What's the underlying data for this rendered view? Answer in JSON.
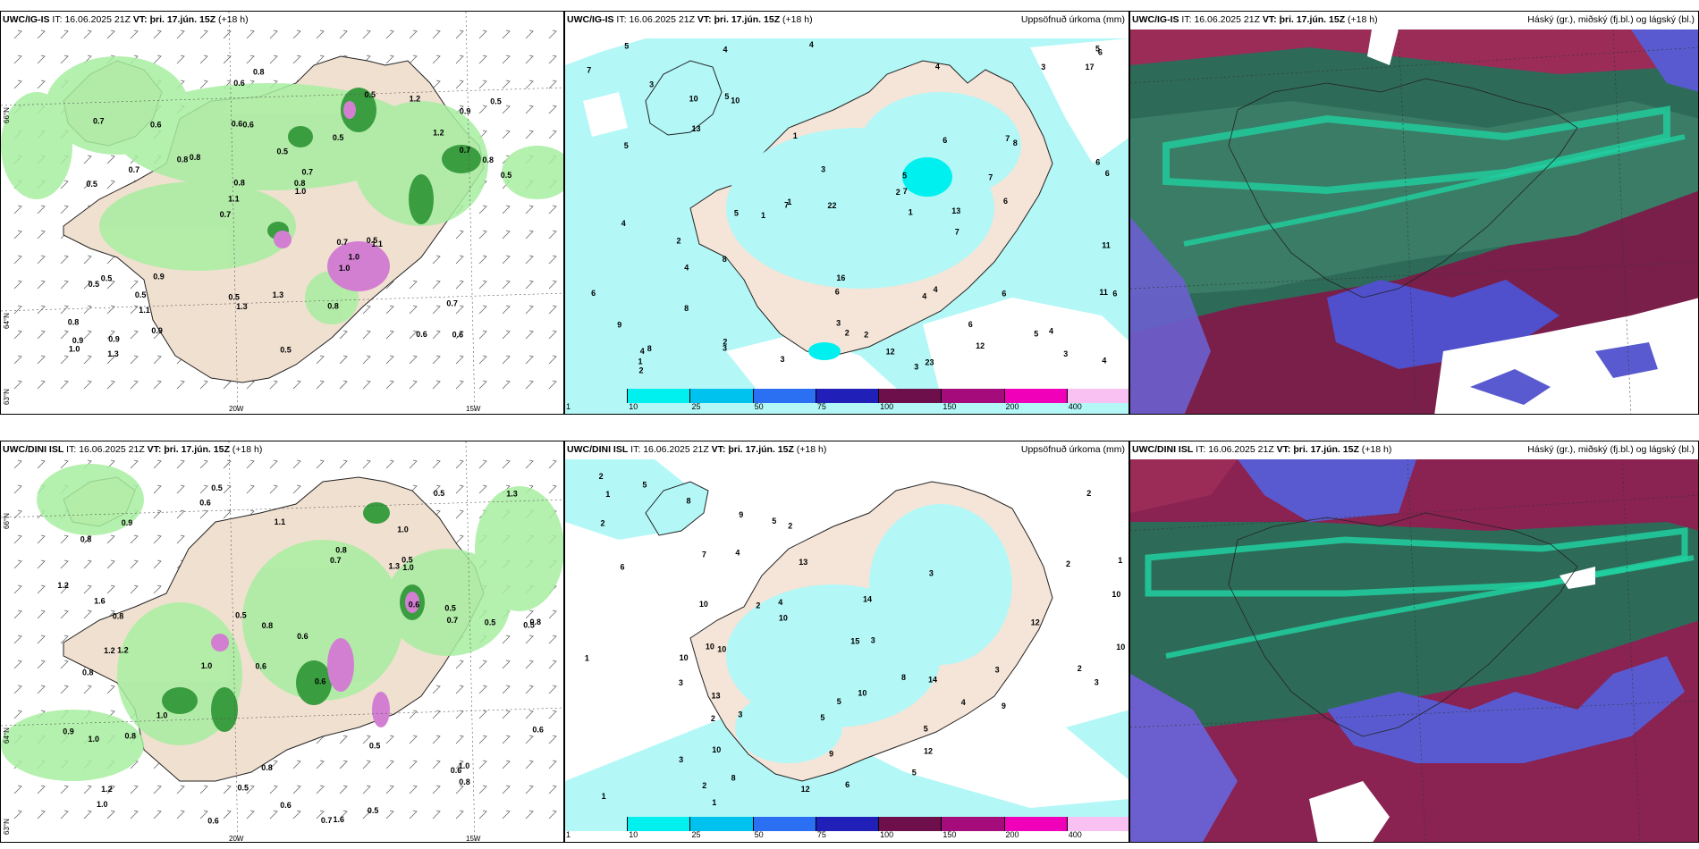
{
  "rows": [
    {
      "precip": {
        "model": "UWC/IG-IS",
        "it_label": "IT:",
        "it_value": "16.06.2025 21Z",
        "vt_label": "VT:",
        "vt_value": "þri. 17.jún. 15Z",
        "lead": "(+18 h)"
      },
      "accum": {
        "model": "UWC/IG-IS",
        "it_label": "IT:",
        "it_value": "16.06.2025 21Z",
        "vt_label": "VT:",
        "vt_value": "þri. 17.jún. 15Z",
        "lead": "(+18 h)",
        "field": "Uppsöfnuð úrkoma (mm)"
      },
      "cloud": {
        "model": "UWC/IG-IS",
        "it_label": "IT:",
        "it_value": "16.06.2025 21Z",
        "vt_label": "VT:",
        "vt_value": "þri. 17.jún. 15Z",
        "lead": "(+18 h)",
        "field": "Háský (gr.), miðský (fj.bl.) og lágský (bl.)"
      }
    },
    {
      "precip": {
        "model": "UWC/DINI ISL",
        "it_label": "IT:",
        "it_value": "16.06.2025 21Z",
        "vt_label": "VT:",
        "vt_value": "þri. 17.jún. 15Z",
        "lead": "(+18 h)"
      },
      "accum": {
        "model": "UWC/DINI ISL",
        "it_label": "IT:",
        "it_value": "16.06.2025 21Z",
        "vt_label": "VT:",
        "vt_value": "þri. 17.jún. 15Z",
        "lead": "(+18 h)",
        "field": "Uppsöfnuð úrkoma (mm)"
      },
      "cloud": {
        "model": "UWC/DINI ISL",
        "it_label": "IT:",
        "it_value": "16.06.2025 21Z",
        "vt_label": "VT:",
        "vt_value": "þri. 17.jún. 15Z",
        "lead": "(+18 h)",
        "field": "Háský (gr.), miðský (fj.bl.) og lágský (bl.)"
      }
    }
  ],
  "legend": {
    "levels": [
      "1",
      "10",
      "25",
      "50",
      "75",
      "100",
      "150",
      "200",
      "400"
    ],
    "colors": [
      "#b3f7f7",
      "#00f0f0",
      "#00c2ee",
      "#2b6ff2",
      "#2020b8",
      "#6c0f4a",
      "#a60b7c",
      "#f000b8",
      "#f9c0f2"
    ]
  },
  "gridlabels": {
    "lat_66": "66°N",
    "lat_64": "64°N",
    "lat_63": "63°N",
    "lon_20": "20W",
    "lon_15": "15W"
  },
  "values": {
    "precip_top": [
      "0.6",
      "0.5",
      "0.9",
      "0.7",
      "0.5",
      "0.9",
      "0.6",
      "0.5",
      "0.5",
      "0.8",
      "0.8",
      "1.1",
      "0.6",
      "0.7",
      "1.1",
      "0.7",
      "0.6",
      "0.5",
      "0.7",
      "0.7",
      "1.1",
      "0.5",
      "0.8",
      "0.6",
      "0.5",
      "0.9",
      "0.6",
      "0.7",
      "0.5",
      "0.5",
      "0.8",
      "0.7",
      "1.0",
      "0.9",
      "0.8",
      "0.8",
      "0.9",
      "1.3",
      "1.0",
      "0.5",
      "1.2",
      "0.5",
      "1.0",
      "0.8",
      "0.5",
      "1.3",
      "1.0",
      "1.3",
      "1.2",
      "0.8"
    ],
    "precip_bottom": [
      "0.5",
      "1.0",
      "0.5",
      "0.6",
      "0.6",
      "1.2",
      "0.8",
      "1.3",
      "0.8",
      "0.7",
      "0.6",
      "1.0",
      "0.6",
      "1.0",
      "0.7",
      "1.6",
      "0.8",
      "0.5",
      "0.6",
      "1.0",
      "0.8",
      "1.2",
      "0.8",
      "0.5",
      "0.9",
      "1.6",
      "0.8",
      "0.7",
      "1.0",
      "1.0",
      "0.6",
      "0.8",
      "0.8",
      "0.5",
      "0.5",
      "0.6",
      "0.5",
      "0.5",
      "1.3",
      "1.1",
      "1.2",
      "0.6",
      "0.5",
      "0.9",
      "0.6",
      "1.0",
      "0.8",
      "0.5",
      "1.2"
    ],
    "accum_top": [
      "3",
      "3",
      "2",
      "6",
      "4",
      "3",
      "5",
      "3",
      "4",
      "1",
      "3",
      "2",
      "1",
      "6",
      "4",
      "2",
      "5",
      "3",
      "1",
      "7",
      "4",
      "6",
      "5",
      "4",
      "8",
      "2",
      "6",
      "4",
      "5",
      "7",
      "22",
      "23",
      "16",
      "17",
      "8",
      "13",
      "11",
      "9",
      "6",
      "4",
      "7",
      "7",
      "6",
      "8",
      "10",
      "4",
      "11",
      "12",
      "10",
      "3",
      "5",
      "6",
      "4",
      "6",
      "8",
      "7",
      "7",
      "3",
      "5",
      "4",
      "5",
      "12",
      "13",
      "6",
      "2",
      "1",
      "1",
      "6",
      "2"
    ],
    "accum_bottom": [
      "1",
      "2",
      "1",
      "2",
      "1",
      "5",
      "2",
      "3",
      "1",
      "4",
      "2",
      "3",
      "1",
      "3",
      "5",
      "2",
      "5",
      "3",
      "4",
      "4",
      "10",
      "9",
      "8",
      "10",
      "10",
      "10",
      "13",
      "9",
      "12",
      "5",
      "8",
      "9",
      "2",
      "3",
      "15",
      "10",
      "8",
      "10",
      "12",
      "3",
      "7",
      "6",
      "14",
      "13",
      "5",
      "14",
      "10",
      "12",
      "5",
      "6",
      "10",
      "10",
      "2",
      "2",
      "3",
      "2"
    ]
  }
}
